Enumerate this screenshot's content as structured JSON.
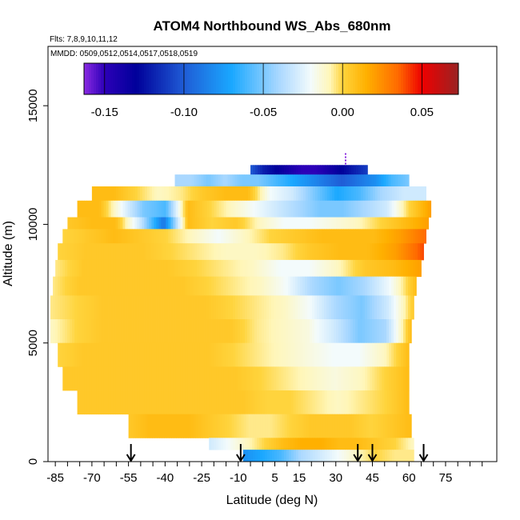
{
  "chart_data": {
    "type": "heatmap",
    "title": "ATOM4 Northbound WS_Abs_680nm",
    "flights_note": "Flts: 7,8,9,10,11,12",
    "dates_note": "MMDD: 0509,0512,0514,0517,0518,0519",
    "xlabel": "Latitude (deg N)",
    "ylabel": "Altitude (m)",
    "xlim": [
      -88,
      96
    ],
    "ylim": [
      0,
      17500
    ],
    "x_ticks": [
      -85,
      -70,
      -55,
      -40,
      -25,
      -10,
      5,
      15,
      30,
      45,
      60,
      75
    ],
    "x_minor_step": 5,
    "y_ticks": [
      0,
      5000,
      10000,
      15000
    ],
    "y_tick_labels": [
      "0",
      "5000",
      "10000",
      "15000"
    ],
    "colorbar": {
      "range": [
        -0.163,
        0.073
      ],
      "ticks": [
        -0.15,
        -0.1,
        -0.05,
        0.0,
        0.05
      ],
      "tick_labels": [
        "-0.15",
        "-0.10",
        "-0.05",
        "0.00",
        "0.05"
      ],
      "color_stops": [
        [
          -0.163,
          "#8a2be2"
        ],
        [
          -0.15,
          "#2c00b8"
        ],
        [
          -0.13,
          "#00009a"
        ],
        [
          -0.1,
          "#1f5cd6"
        ],
        [
          -0.07,
          "#1aa8ff"
        ],
        [
          -0.04,
          "#aad8ff"
        ],
        [
          -0.02,
          "#f3fbfc"
        ],
        [
          -0.008,
          "#fff6b8"
        ],
        [
          0.0,
          "#ffd43d"
        ],
        [
          0.015,
          "#ffb000"
        ],
        [
          0.035,
          "#ff6a00"
        ],
        [
          0.05,
          "#ee0000"
        ],
        [
          0.073,
          "#9a2323"
        ]
      ]
    },
    "arrows_lat": [
      -54,
      -9,
      39,
      45,
      66
    ],
    "latitude_grid": [
      -86,
      -81,
      -76,
      -71,
      -66,
      -61,
      -56,
      -51,
      -46,
      -41,
      -36,
      -31,
      -26,
      -21,
      -16,
      -11,
      -6,
      -1,
      4,
      9,
      14,
      19,
      24,
      29,
      34,
      39,
      44,
      49,
      54,
      59,
      64,
      69
    ],
    "layers": [
      {
        "alt": [
          12100,
          12500
        ],
        "lat_range": [
          -5,
          43
        ],
        "values": [
          -0.1,
          -0.12,
          -0.13,
          -0.14,
          -0.15,
          -0.15,
          -0.14,
          -0.13,
          -0.12,
          -0.11
        ]
      },
      {
        "alt": [
          11600,
          12100
        ],
        "lat_range": [
          -36,
          60
        ],
        "values": [
          -0.04,
          -0.04,
          -0.05,
          -0.04,
          -0.05,
          -0.05,
          -0.06,
          -0.07,
          -0.08,
          -0.09,
          -0.1,
          -0.09,
          -0.08,
          -0.06,
          -0.05
        ]
      },
      {
        "alt": [
          11000,
          11600
        ],
        "lat_range": [
          -70,
          67
        ],
        "values": [
          0.01,
          0.01,
          0.0,
          -0.01,
          -0.005,
          0.005,
          0.01,
          0.01,
          -0.02,
          -0.03,
          -0.05,
          -0.07,
          -0.06,
          -0.04,
          -0.03,
          -0.03
        ]
      },
      {
        "alt": [
          10300,
          11000
        ],
        "lat_range": [
          -76,
          69
        ],
        "values": [
          0.01,
          0.01,
          -0.02,
          -0.05,
          -0.06,
          0.01,
          0.0,
          -0.01,
          -0.02,
          -0.03,
          -0.04,
          -0.05,
          -0.05,
          -0.04,
          -0.03,
          0.0,
          0.02
        ]
      },
      {
        "alt": [
          9800,
          10300
        ],
        "lat_range": [
          -80,
          68
        ],
        "values": [
          0.005,
          0.01,
          0.01,
          -0.03,
          -0.09,
          0.01,
          0.0,
          0.005,
          -0.01,
          -0.02,
          -0.02,
          -0.015,
          -0.01,
          0.0,
          0.01,
          0.02
        ]
      },
      {
        "alt": [
          9200,
          9800
        ],
        "lat_range": [
          -82,
          67
        ],
        "values": [
          0.0,
          0.005,
          0.01,
          0.005,
          0.0,
          -0.01,
          -0.02,
          -0.01,
          0.0,
          0.005,
          0.01,
          0.01,
          0.01,
          0.02,
          0.035
        ]
      },
      {
        "alt": [
          8500,
          9200
        ],
        "lat_range": [
          -84,
          66
        ],
        "values": [
          0.0,
          0.005,
          0.005,
          0.005,
          0.0,
          -0.005,
          -0.01,
          -0.01,
          -0.005,
          0.005,
          0.01,
          0.01,
          0.02,
          0.04
        ]
      },
      {
        "alt": [
          7800,
          8500
        ],
        "lat_range": [
          -85,
          65
        ],
        "values": [
          -0.005,
          0.005,
          0.005,
          0.005,
          0.005,
          0.0,
          -0.005,
          -0.01,
          -0.02,
          -0.02,
          -0.01,
          0.005,
          0.01,
          0.02
        ]
      },
      {
        "alt": [
          7000,
          7800
        ],
        "lat_range": [
          -86,
          63
        ],
        "values": [
          -0.005,
          0.005,
          0.005,
          0.005,
          0.005,
          0.005,
          0.0,
          -0.005,
          -0.01,
          -0.02,
          -0.04,
          -0.05,
          -0.04,
          -0.02,
          0.01
        ]
      },
      {
        "alt": [
          6000,
          7000
        ],
        "lat_range": [
          -87,
          62
        ],
        "values": [
          -0.005,
          0.0,
          0.005,
          0.005,
          0.005,
          0.005,
          0.005,
          0.0,
          -0.005,
          -0.01,
          -0.02,
          -0.04,
          -0.05,
          -0.03,
          0.005
        ]
      },
      {
        "alt": [
          5000,
          6000
        ],
        "lat_range": [
          -87,
          61
        ],
        "values": [
          -0.01,
          0.0,
          0.005,
          0.005,
          0.005,
          0.005,
          0.005,
          0.005,
          -0.005,
          -0.01,
          -0.015,
          -0.03,
          -0.05,
          -0.04,
          0.01
        ]
      },
      {
        "alt": [
          4000,
          5000
        ],
        "lat_range": [
          -84,
          60
        ],
        "values": [
          0.0,
          0.005,
          0.005,
          0.005,
          0.005,
          0.005,
          0.005,
          0.0,
          -0.005,
          -0.01,
          -0.015,
          -0.02,
          -0.02,
          -0.01,
          0.01
        ]
      },
      {
        "alt": [
          3000,
          4000
        ],
        "lat_range": [
          -82,
          60
        ],
        "values": [
          0.005,
          0.005,
          0.005,
          0.005,
          0.005,
          0.005,
          0.005,
          0.005,
          0.0,
          -0.005,
          -0.01,
          -0.015,
          -0.01,
          0.0,
          0.01
        ]
      },
      {
        "alt": [
          2000,
          3000
        ],
        "lat_range": [
          -76,
          60
        ],
        "values": [
          0.005,
          0.005,
          0.005,
          0.005,
          0.005,
          0.005,
          0.005,
          0.005,
          0.0,
          0.0,
          -0.005,
          -0.01,
          -0.005,
          0.0,
          0.01
        ]
      },
      {
        "alt": [
          1000,
          2000
        ],
        "lat_range": [
          -55,
          61
        ],
        "values": [
          0.005,
          0.01,
          0.01,
          0.01,
          0.005,
          0.0,
          -0.005,
          -0.005,
          0.0,
          0.005,
          0.005,
          0.005,
          0.0,
          0.005,
          0.01
        ]
      },
      {
        "alt": [
          500,
          1000
        ],
        "lat_range": [
          -22,
          62
        ],
        "values": [
          -0.03,
          -0.02,
          -0.01,
          0.0,
          0.01,
          0.015,
          0.015,
          0.01,
          0.01,
          0.005,
          0.0,
          -0.01
        ]
      },
      {
        "alt": [
          0,
          500
        ],
        "lat_range": [
          -8,
          62
        ],
        "values": [
          -0.08,
          -0.07,
          -0.06,
          -0.04,
          -0.03,
          -0.02,
          -0.01,
          0.0,
          -0.005,
          -0.005
        ]
      }
    ],
    "purple_mark": {
      "lat": 34,
      "alt_range": [
        12500,
        13000
      ]
    }
  }
}
